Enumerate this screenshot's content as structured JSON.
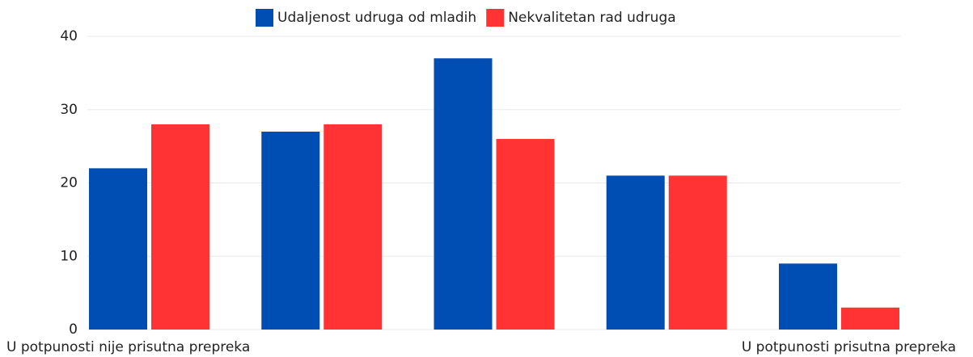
{
  "chart_data": {
    "type": "bar",
    "categories": [
      "U potpunosti nije prisutna prepreka",
      null,
      null,
      null,
      "U potpunosti prisutna prepreka"
    ],
    "series": [
      {
        "name": "Udaljenost udruga od mladih",
        "color": "#004db3",
        "values": [
          22,
          27,
          37,
          21,
          9
        ]
      },
      {
        "name": "Nekvalitetan rad udruga",
        "color": "#ff3333",
        "values": [
          28,
          28,
          26,
          21,
          3
        ]
      }
    ],
    "ylim": [
      0,
      40
    ],
    "yticks": [
      0,
      10,
      20,
      30,
      40
    ],
    "grid": true,
    "legend": "top"
  }
}
